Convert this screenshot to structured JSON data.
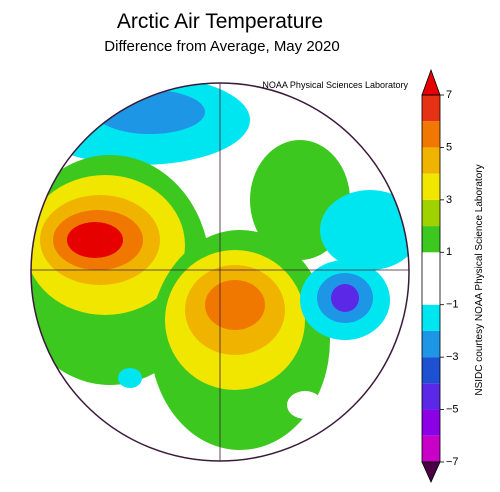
{
  "title": "Arctic Air Temperature",
  "subtitle": "Difference from Average, May 2020",
  "credit": "NOAA Physical Sciences Laboratory",
  "side_label": "NSIDC courtesy NOAA Physical Science Laboratory",
  "colorbar": {
    "lim": [
      -7,
      7
    ],
    "ticks": [
      7,
      5,
      3,
      1,
      {
        "value": -1,
        "label": "−1"
      },
      {
        "value": -3,
        "label": "−3"
      },
      {
        "value": -5,
        "label": "−5"
      },
      {
        "value": -7,
        "label": "−7"
      }
    ],
    "levels": [
      -7,
      -6,
      -5,
      -4,
      -3,
      -2,
      -1,
      1,
      2,
      3,
      4,
      5,
      6,
      7
    ],
    "colors": [
      "#c800c8",
      "#8c00e6",
      "#5a28e6",
      "#1e50d2",
      "#1e96e6",
      "#00e6f0",
      "#ffffff",
      "#3cc81e",
      "#a0d200",
      "#f0e600",
      "#f0b400",
      "#f07800",
      "#e63214"
    ],
    "over_color": "#e60000",
    "under_color": "#4b0046"
  }
}
